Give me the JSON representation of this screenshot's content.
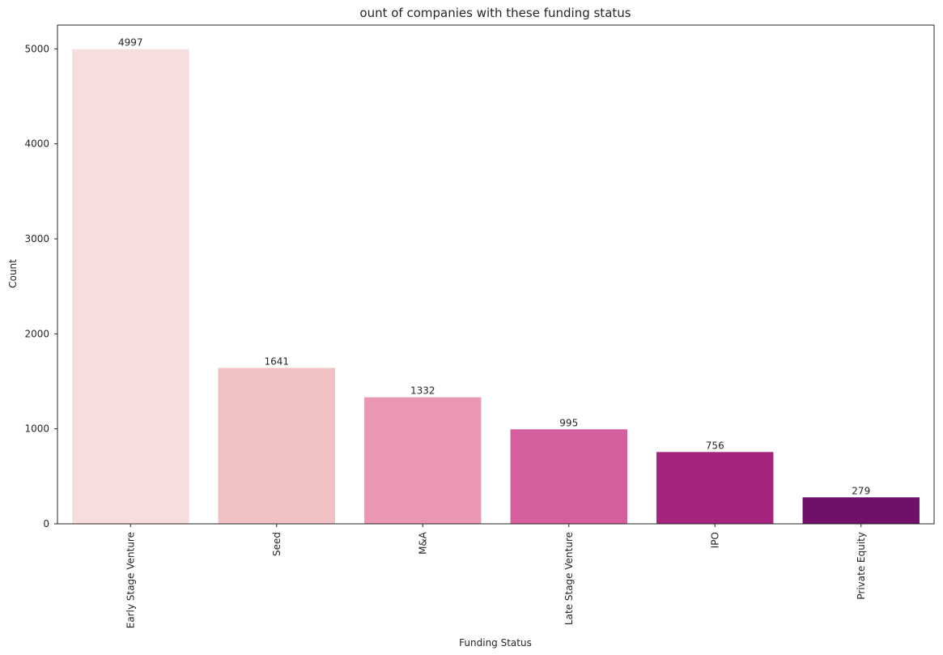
{
  "chart_data": {
    "type": "bar",
    "title": "ount of companies with these funding status",
    "xlabel": "Funding Status",
    "ylabel": "Count",
    "categories": [
      "Early Stage Venture",
      "Seed",
      "M&A",
      "Late Stage Venture",
      "IPO",
      "Private Equity"
    ],
    "values": [
      4997,
      1641,
      1332,
      995,
      756,
      279
    ],
    "data_labels": [
      "4997",
      "1641",
      "1332",
      "995",
      "756",
      "279"
    ],
    "colors": [
      "#f7dede",
      "#f1c1c4",
      "#eb97b4",
      "#d45f9c",
      "#a5247d",
      "#701069"
    ],
    "ylim": [
      0,
      5250
    ],
    "yticks": [
      0,
      1000,
      2000,
      3000,
      4000,
      5000
    ],
    "ytick_labels": [
      "0",
      "1000",
      "2000",
      "3000",
      "4000",
      "5000"
    ],
    "grid": false,
    "legend": "none"
  }
}
